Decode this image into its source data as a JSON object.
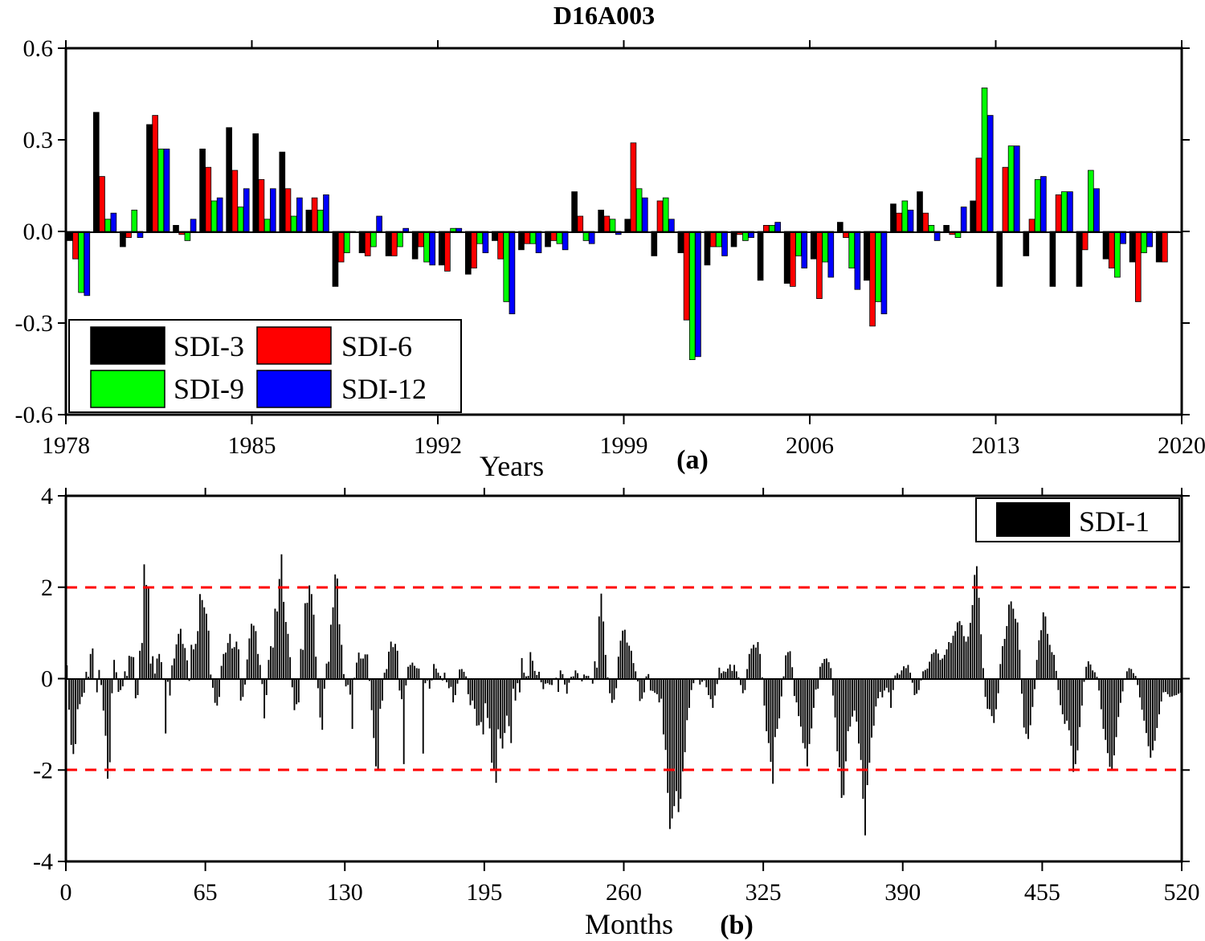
{
  "title": "D16A003",
  "colors": {
    "sdi3": "#000000",
    "sdi6": "#ff0000",
    "sdi9": "#00ff00",
    "sdi12": "#0000ff",
    "threshold": "#ff0000"
  },
  "chart_data": [
    {
      "type": "bar",
      "panel_label": "(a)",
      "xlabel": "Years",
      "ylabel": "",
      "xlim": [
        1978,
        2020
      ],
      "ylim": [
        -0.6,
        0.6
      ],
      "x_ticks": [
        "1978",
        "1985",
        "1992",
        "1999",
        "2006",
        "2013",
        "2020"
      ],
      "y_ticks": [
        "0.6",
        "0.3",
        "0.0",
        "-0.3",
        "-0.6"
      ],
      "legend_position": "bottom-left",
      "categories": [
        1978,
        1979,
        1980,
        1981,
        1982,
        1983,
        1984,
        1985,
        1986,
        1987,
        1988,
        1989,
        1990,
        1991,
        1992,
        1993,
        1994,
        1995,
        1996,
        1997,
        1998,
        1999,
        2000,
        2001,
        2002,
        2003,
        2004,
        2005,
        2006,
        2007,
        2008,
        2009,
        2010,
        2011,
        2012,
        2013,
        2014,
        2015,
        2016,
        2017,
        2018,
        2019
      ],
      "series": [
        {
          "name": "SDI-3",
          "color_key": "sdi3",
          "values": [
            -0.03,
            0.39,
            -0.05,
            0.35,
            0.02,
            0.27,
            0.34,
            0.32,
            0.26,
            0.07,
            -0.18,
            -0.07,
            -0.08,
            -0.09,
            -0.11,
            -0.14,
            -0.03,
            -0.06,
            -0.05,
            0.13,
            0.07,
            0.04,
            -0.08,
            -0.07,
            -0.11,
            -0.05,
            -0.16,
            -0.17,
            -0.09,
            0.03,
            -0.16,
            0.09,
            0.13,
            0.02,
            0.1,
            -0.18,
            -0.08,
            -0.18,
            -0.18,
            -0.09,
            -0.1,
            -0.1
          ]
        },
        {
          "name": "SDI-6",
          "color_key": "sdi6",
          "values": [
            -0.09,
            0.18,
            -0.02,
            0.38,
            -0.01,
            0.21,
            0.2,
            0.17,
            0.14,
            0.11,
            -0.1,
            -0.08,
            -0.08,
            -0.05,
            -0.13,
            -0.12,
            -0.09,
            -0.04,
            -0.03,
            0.05,
            0.05,
            0.29,
            0.1,
            -0.29,
            -0.05,
            -0.01,
            0.02,
            -0.18,
            -0.22,
            -0.02,
            -0.31,
            0.06,
            0.06,
            -0.01,
            0.24,
            0.21,
            0.04,
            0.12,
            -0.06,
            -0.12,
            -0.23,
            -0.1
          ]
        },
        {
          "name": "SDI-9",
          "color_key": "sdi9",
          "values": [
            -0.2,
            0.04,
            0.07,
            0.27,
            -0.03,
            0.1,
            0.08,
            0.04,
            0.05,
            0.07,
            -0.07,
            -0.05,
            -0.05,
            -0.1,
            0.01,
            -0.04,
            -0.23,
            -0.04,
            -0.04,
            -0.03,
            0.04,
            0.14,
            0.11,
            -0.42,
            -0.05,
            -0.03,
            0.02,
            -0.08,
            -0.1,
            -0.12,
            -0.23,
            0.1,
            0.02,
            -0.02,
            0.47,
            0.28,
            0.17,
            0.13,
            0.2,
            -0.15,
            -0.07,
            0.0
          ]
        },
        {
          "name": "SDI-12",
          "color_key": "sdi12",
          "values": [
            -0.21,
            0.06,
            -0.02,
            0.27,
            0.04,
            0.11,
            0.14,
            0.14,
            0.11,
            0.12,
            0.0,
            0.05,
            0.01,
            -0.11,
            0.01,
            -0.07,
            -0.27,
            -0.07,
            -0.06,
            -0.04,
            -0.01,
            0.11,
            0.04,
            -0.41,
            -0.08,
            -0.02,
            0.03,
            -0.12,
            -0.15,
            -0.19,
            -0.27,
            0.07,
            -0.03,
            0.08,
            0.38,
            0.28,
            0.18,
            0.13,
            0.14,
            -0.04,
            -0.05,
            0.0
          ]
        }
      ]
    },
    {
      "type": "bar",
      "panel_label": "(b)",
      "xlabel": "Months",
      "ylabel": "",
      "xlim": [
        0,
        520
      ],
      "ylim": [
        -4,
        4
      ],
      "x_ticks": [
        "0",
        "65",
        "130",
        "195",
        "260",
        "325",
        "390",
        "455",
        "520"
      ],
      "y_ticks": [
        "4",
        "2",
        "0",
        "-2",
        "-4"
      ],
      "legend_position": "top-right",
      "series_name": "SDI-1",
      "thresholds": [
        2,
        -2
      ],
      "values": [
        0.29,
        -0.68,
        -1.45,
        -1.65,
        -1.43,
        -0.67,
        -0.56,
        -0.4,
        -0.31,
        0.15,
        0.04,
        0.54,
        0.66,
        0.01,
        -0.3,
        0.19,
        -0.14,
        -0.7,
        -1.25,
        -2.19,
        -1.83,
        -0.32,
        0.41,
        0.14,
        -0.29,
        -0.25,
        -0.17,
        0.16,
        0.06,
        0.5,
        0.48,
        0.47,
        -0.43,
        -0.36,
        0.61,
        0.78,
        2.5,
        2.05,
        1.99,
        0.33,
        0.49,
        0.11,
        0.44,
        0.54,
        0.36,
        -0.03,
        -1.2,
        -0.07,
        -0.37,
        0.29,
        0.44,
        0.75,
        0.98,
        1.09,
        0.76,
        0.67,
        0.4,
        -0.05,
        0.74,
        0.64,
        0.76,
        1.04,
        1.85,
        1.72,
        1.56,
        1.42,
        1.05,
        0.09,
        -0.2,
        -0.53,
        -0.59,
        -0.4,
        0.28,
        0.54,
        0.57,
        0.78,
        0.98,
        0.66,
        0.69,
        0.81,
        0.64,
        -0.48,
        -0.4,
        -0.13,
        0.42,
        0.88,
        1.2,
        1.16,
        1.04,
        0.54,
        0.3,
        -0.12,
        -0.87,
        -0.36,
        0.41,
        0.71,
        0.68,
        1.53,
        1.47,
        2.18,
        2.72,
        1.68,
        1.24,
        0.98,
        0.47,
        -0.19,
        -0.69,
        -0.56,
        -0.52,
        0.65,
        0.63,
        1.65,
        1.66,
        2.04,
        1.85,
        1.4,
        0.48,
        -0.21,
        -0.85,
        -1.12,
        -0.22,
        0.33,
        0.37,
        1.18,
        1.56,
        2.28,
        2.19,
        1.19,
        0.74,
        0.1,
        -0.17,
        -0.14,
        -0.35,
        -1.1,
        0.02,
        0.35,
        0.57,
        0.44,
        0.44,
        0.53,
        0.53,
        -0.05,
        -0.69,
        -1.3,
        -1.92,
        -2.0,
        -0.66,
        -0.48,
        0.13,
        0.21,
        0.59,
        0.81,
        0.69,
        0.76,
        0.61,
        -0.26,
        -0.45,
        -1.87,
        -0.15,
        0.26,
        0.3,
        0.35,
        0.28,
        0.23,
        0.22,
        -0.02,
        -1.64,
        -0.1,
        -0.04,
        -0.22,
        -0.04,
        0.32,
        0.22,
        0.13,
        0.06,
        -0.04,
        0.13,
        -0.08,
        -0.21,
        -0.18,
        -0.52,
        -0.36,
        -0.11,
        0.2,
        0.21,
        0.15,
        0.05,
        -0.34,
        -0.58,
        -0.48,
        -0.66,
        -1.03,
        -1.02,
        -0.95,
        -1.22,
        -0.54,
        -0.86,
        -1.09,
        -1.84,
        -1.97,
        -2.28,
        -1.11,
        -1.31,
        -1.53,
        -1.19,
        -0.81,
        -1.04,
        -1.41,
        -0.22,
        -0.48,
        -0.1,
        -0.3,
        0.45,
        0.13,
        0.05,
        0.06,
        0.58,
        0.39,
        0.17,
        0.08,
        0.15,
        -0.08,
        -0.23,
        -0.11,
        -0.1,
        -0.13,
        -0.14,
        0.01,
        0.02,
        -0.29,
        0.18,
        0.1,
        -0.13,
        -0.33,
        -0.09,
        0.04,
        0.05,
        0.18,
        0.12,
        0.01,
        -0.06,
        0.09,
        0.06,
        0.06,
        -0.02,
        -0.11,
        0.38,
        0.24,
        1.36,
        1.86,
        1.25,
        0.52,
        0.03,
        -0.32,
        -0.53,
        -0.46,
        -0.21,
        0.48,
        0.83,
        1.05,
        1.07,
        0.79,
        0.72,
        0.61,
        0.34,
        0.16,
        -0.06,
        -0.49,
        -0.44,
        -0.3,
        0.05,
        0.1,
        -0.26,
        -0.27,
        -0.31,
        -0.34,
        -0.52,
        -0.44,
        -1.22,
        -1.56,
        -2.5,
        -3.29,
        -3.06,
        -2.79,
        -2.46,
        -2.92,
        -2.63,
        -2.03,
        -1.61,
        -0.91,
        -0.64,
        -0.25,
        -0.1,
        0.0,
        0.01,
        -0.13,
        -0.07,
        -0.04,
        -0.19,
        -0.36,
        -0.45,
        -0.64,
        -0.37,
        -0.12,
        0.24,
        0.12,
        0.16,
        0.15,
        0.22,
        0.31,
        0.17,
        0.3,
        0.16,
        0.03,
        -0.14,
        -0.32,
        -0.25,
        0.21,
        0.54,
        0.66,
        0.74,
        0.68,
        0.8,
        0.54,
        0.03,
        -0.59,
        -1.15,
        -1.41,
        -1.82,
        -2.3,
        -1.28,
        -1.1,
        -0.87,
        -0.39,
        0.05,
        0.51,
        0.58,
        0.6,
        0.25,
        -0.38,
        -0.52,
        -0.82,
        -1.05,
        -1.41,
        -1.53,
        -1.92,
        -1.43,
        -1.09,
        -0.64,
        -0.24,
        -0.22,
        0.26,
        0.34,
        0.43,
        0.44,
        0.36,
        0.23,
        -0.37,
        -0.85,
        -1.59,
        -1.94,
        -2.61,
        -2.55,
        -1.81,
        -1.15,
        -1.05,
        -0.83,
        -0.7,
        -0.94,
        -1.42,
        -1.78,
        -2.63,
        -3.43,
        -2.33,
        -1.84,
        -1.29,
        -1.03,
        -0.61,
        -0.43,
        -0.29,
        -0.41,
        -0.26,
        -0.2,
        -0.3,
        -0.64,
        -0.25,
        0.07,
        0.12,
        0.09,
        0.18,
        0.27,
        0.23,
        0.3,
        0.13,
        -0.09,
        -0.36,
        -0.33,
        -0.25,
        -0.04,
        0.16,
        0.19,
        0.22,
        0.37,
        0.54,
        0.57,
        0.64,
        0.55,
        0.41,
        0.44,
        0.52,
        0.64,
        0.8,
        0.78,
        0.94,
        1.04,
        1.23,
        1.26,
        1.17,
        0.93,
        0.81,
        0.92,
        1.22,
        1.61,
        2.27,
        2.46,
        1.77,
        0.97,
        0.23,
        -0.4,
        -0.66,
        -0.67,
        -0.82,
        -0.97,
        -0.67,
        -0.32,
        0.32,
        0.71,
        0.87,
        1.15,
        1.62,
        1.69,
        1.53,
        1.31,
        1.23,
        0.63,
        -0.33,
        -1.07,
        -1.21,
        -1.32,
        -1.02,
        -0.62,
        -0.23,
        0.41,
        0.84,
        1.06,
        1.45,
        1.36,
        0.98,
        0.74,
        0.58,
        0.52,
        0.17,
        -0.25,
        -0.58,
        -0.78,
        -0.99,
        -0.92,
        -1.13,
        -1.47,
        -2.04,
        -1.87,
        -1.57,
        -1.06,
        -0.59,
        -0.07,
        0.26,
        0.38,
        0.31,
        0.18,
        0.14,
        0.04,
        -0.26,
        -0.67,
        -1.1,
        -1.34,
        -1.63,
        -1.93,
        -2.0,
        -1.68,
        -1.28,
        -0.84,
        -0.53,
        -0.28,
        -0.02,
        0.16,
        0.23,
        0.21,
        0.12,
        0.06,
        -0.14,
        -0.41,
        -0.68,
        -0.92,
        -1.19,
        -1.48,
        -1.73,
        -1.57,
        -1.36,
        -1.08,
        -0.78,
        -0.5,
        -0.3,
        -0.29,
        -0.34,
        -0.4,
        -0.39,
        -0.37,
        -0.36,
        -0.33,
        -0.31
      ]
    }
  ],
  "legend_a": [
    "SDI-3",
    "SDI-6",
    "SDI-9",
    "SDI-12"
  ],
  "legend_b": "SDI-1"
}
